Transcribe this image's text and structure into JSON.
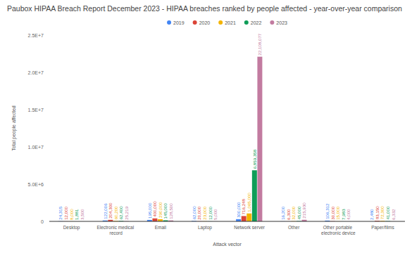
{
  "chart_data": {
    "type": "bar",
    "title": "Paubox HIPAA Breach Report December 2023 - HIPAA breaches ranked by people affected - year-over-year comparison",
    "x_label": "Attack vector",
    "y_label": "Total people affected",
    "categories": [
      "Desktop",
      "Electronic medical record",
      "Email",
      "Laptop",
      "Network server",
      "Other",
      "Other portable electronic device",
      "Paper/films"
    ],
    "series": [
      {
        "name": "2019",
        "color": "#4285f4",
        "values": [
          24315,
          122006,
          195000,
          62000,
          300000,
          16200,
          106312,
          2480
        ],
        "value_labels": [
          "24,315",
          "122,006",
          "195,000",
          "62,000",
          "300,000",
          "16,200",
          "106,312",
          "2,480"
        ]
      },
      {
        "name": "2020",
        "color": "#db4437",
        "values": [
          12000,
          204300,
          400000,
          20000,
          716248,
          6300,
          30000,
          83150
        ],
        "value_labels": [
          "12,000",
          "204,300",
          "400,000",
          "20,000",
          "716,248",
          "6,300",
          "30,000",
          "83,150"
        ]
      },
      {
        "name": "2021",
        "color": "#f4b400",
        "values": [
          8000,
          60200,
          290000,
          23000,
          1065000,
          32000,
          15000,
          72300
        ],
        "value_labels": [
          "8,000",
          "60,200",
          "290,000",
          "23,000",
          "1,065,000",
          "32,000",
          "15,000",
          "72,300"
        ]
      },
      {
        "name": "2022",
        "color": "#0f9d58",
        "values": [
          1881,
          62400,
          145000,
          12000,
          6859358,
          45000,
          7983,
          41000
        ],
        "value_labels": [
          "1,881",
          "62,400",
          "145,000",
          "12,000",
          "6,859,358",
          "45,000",
          "7,983",
          "41,000"
        ]
      },
      {
        "name": "2023",
        "color": "#c27ba0",
        "values": [
          3500,
          25219,
          128500,
          5000,
          22108077,
          215930,
          4000,
          6332
        ],
        "value_labels": [
          "3,500",
          "25,219",
          "128,500",
          "5,000",
          "22,108,077",
          "215,930",
          "4,000",
          "6,332"
        ]
      }
    ],
    "ylim": [
      0,
      25000000
    ],
    "yticks": [
      {
        "value": 0,
        "label": "0"
      },
      {
        "value": 5000000,
        "label": "5.0E+6"
      },
      {
        "value": 10000000,
        "label": "1.0E+7"
      },
      {
        "value": 15000000,
        "label": "1.5E+7"
      },
      {
        "value": 20000000,
        "label": "2.0E+7"
      },
      {
        "value": 25000000,
        "label": "2.5E+7"
      }
    ],
    "grid": false,
    "legend": "top",
    "data_labels": true
  }
}
